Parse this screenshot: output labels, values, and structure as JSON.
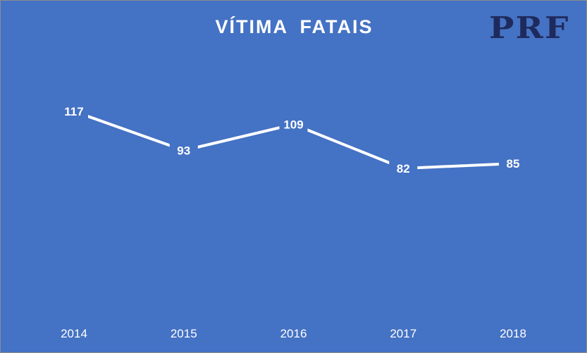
{
  "title": "VÍTIMA  FATAIS",
  "logo_text": "PRF",
  "colors": {
    "background": "#4472c4",
    "line": "#ffffff",
    "logo": "#1f2a5c"
  },
  "chart_data": {
    "type": "line",
    "title": "VÍTIMA  FATAIS",
    "categories": [
      "2014",
      "2015",
      "2016",
      "2017",
      "2018"
    ],
    "values": [
      117,
      93,
      109,
      82,
      85
    ],
    "data_labels": true,
    "drop_lines": true,
    "grid": false,
    "legend": "none"
  }
}
